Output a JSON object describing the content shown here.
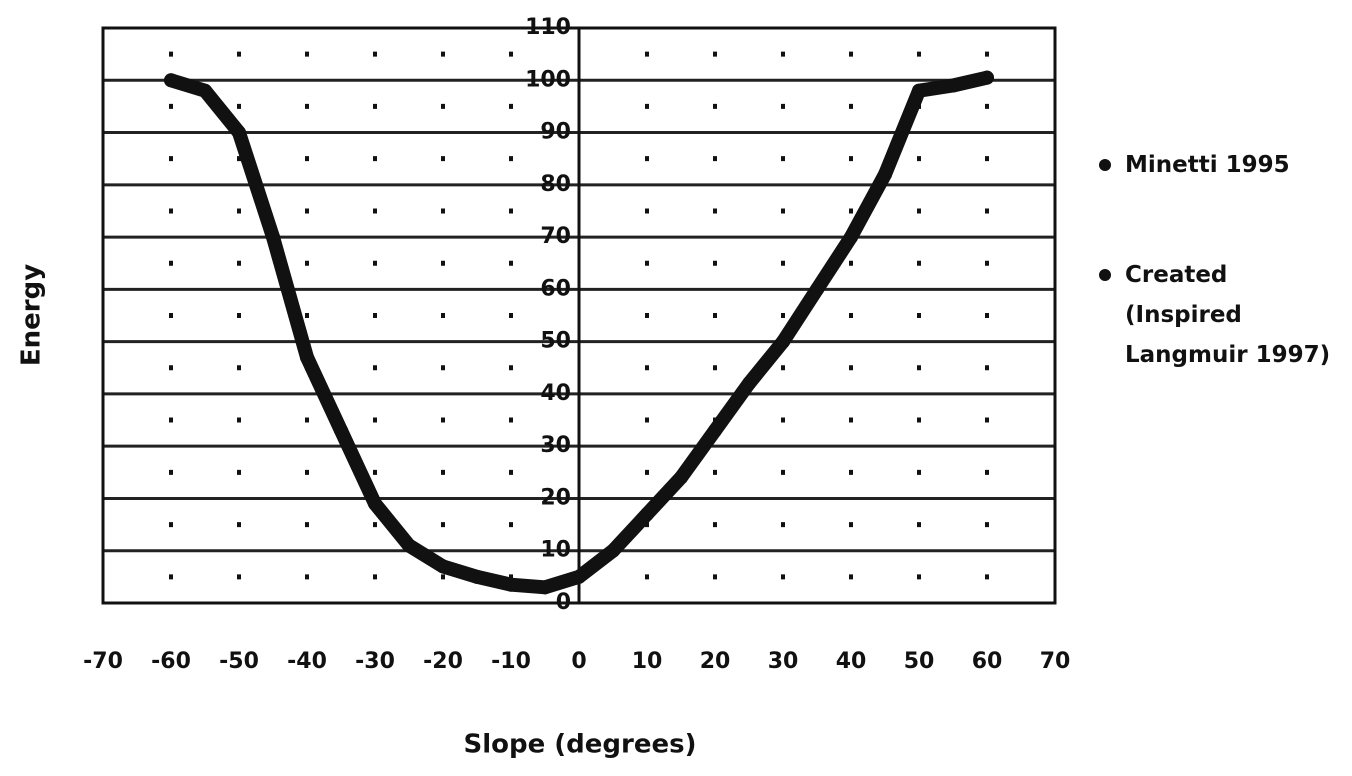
{
  "chart_data": {
    "type": "line",
    "x_label": "Slope (degrees)",
    "y_label": "Energy",
    "x": [
      -60,
      -55,
      -50,
      -45,
      -40,
      -35,
      -30,
      -25,
      -20,
      -15,
      -10,
      -5,
      0,
      5,
      10,
      15,
      20,
      25,
      30,
      35,
      40,
      45,
      50,
      55,
      60
    ],
    "series": [
      {
        "name": "Minetti 1995",
        "color": "#111111",
        "values": [
          100,
          98,
          90,
          70,
          47,
          33,
          19,
          11,
          7,
          5,
          3.5,
          3,
          5,
          10,
          17,
          24,
          33,
          42,
          50,
          60,
          70,
          82,
          98,
          99,
          100.5
        ]
      },
      {
        "name": "Created (Inspired Langmuir 1997)",
        "color": "#111111",
        "values": [
          100,
          98,
          90,
          70,
          47,
          33,
          19,
          11,
          7,
          5,
          3.5,
          3,
          5,
          10,
          17,
          24,
          33,
          42,
          50,
          60,
          70,
          82,
          98,
          99,
          100.5
        ]
      }
    ],
    "xlim": [
      -70,
      70
    ],
    "xticks": [
      -70,
      -60,
      -50,
      -40,
      -30,
      -20,
      -10,
      0,
      10,
      20,
      30,
      40,
      50,
      60,
      70
    ],
    "ylim": [
      0,
      110
    ],
    "yticks": [
      0,
      10,
      20,
      30,
      40,
      50,
      60,
      70,
      80,
      90,
      100,
      110
    ],
    "grid": true
  }
}
